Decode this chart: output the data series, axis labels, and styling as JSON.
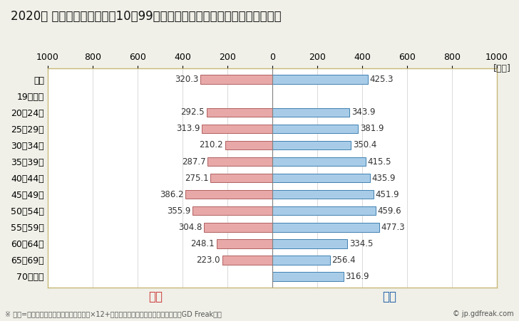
{
  "title": "2020年 民間企業（従業者数10～99人）フルタイム労働者の男女別平均年収",
  "unit_label": "[万円]",
  "categories": [
    "全体",
    "19歳以下",
    "20～24歳",
    "25～29歳",
    "30～34歳",
    "35～39歳",
    "40～44歳",
    "45～49歳",
    "50～54歳",
    "55～59歳",
    "60～64歳",
    "65～69歳",
    "70歳以上"
  ],
  "female_values": [
    320.3,
    0,
    292.5,
    313.9,
    210.2,
    287.7,
    275.1,
    386.2,
    355.9,
    304.8,
    248.1,
    223.0,
    0
  ],
  "male_values": [
    425.3,
    0,
    343.9,
    381.9,
    350.4,
    415.5,
    435.9,
    451.9,
    459.6,
    477.3,
    334.5,
    256.4,
    316.9
  ],
  "female_color": "#e8a8a8",
  "male_color": "#a8cce8",
  "female_border_color": "#b06060",
  "male_border_color": "#4080b0",
  "female_label": "女性",
  "male_label": "男性",
  "female_label_color": "#cc3333",
  "male_label_color": "#1a5ca8",
  "xlim": [
    -1000,
    1000
  ],
  "xticks": [
    -1000,
    -800,
    -600,
    -400,
    -200,
    0,
    200,
    400,
    600,
    800,
    1000
  ],
  "xticklabels": [
    "1000",
    "800",
    "600",
    "400",
    "200",
    "0",
    "200",
    "400",
    "600",
    "800",
    "1000"
  ],
  "footnote": "※ 年収=『きまって支給する現金給与額』×12+『年間賞与その他特別給与額』としてGD Freak推計",
  "copyright": "© jp.gdfreak.com",
  "background_color": "#f0f0e8",
  "plot_bg_color": "#ffffff",
  "outer_border_color": "#c8b878",
  "grid_color": "#cccccc",
  "center_line_color": "#808080",
  "title_fontsize": 12,
  "tick_fontsize": 9,
  "bar_label_fontsize": 8.5,
  "ylabel_fontsize": 9,
  "legend_fontsize": 12,
  "footnote_fontsize": 7,
  "bar_height": 0.55
}
